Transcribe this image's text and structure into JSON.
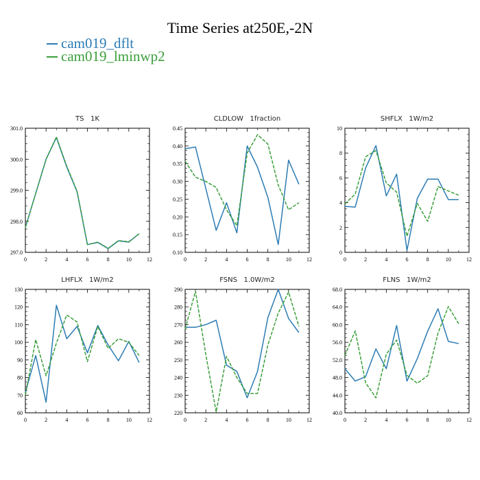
{
  "page": {
    "title": "Time Series at250E,-2N"
  },
  "colors": {
    "dflt": "#2b7bb3",
    "lminwp2": "#3a9e3a"
  },
  "legend": [
    {
      "label": "cam019_dflt",
      "color": "#2b7bb3",
      "style": "solid"
    },
    {
      "label": "cam019_lminwp2",
      "color": "#3a9e3a",
      "style": "solid"
    }
  ],
  "chart_data": [
    {
      "type": "line",
      "title": "TS   1K",
      "x": [
        0,
        1,
        2,
        3,
        4,
        5,
        6,
        7,
        8,
        9,
        10,
        11
      ],
      "xlim": [
        0,
        12
      ],
      "xticks": [
        0,
        2,
        4,
        6,
        8,
        10,
        12
      ],
      "ylim": [
        297.0,
        301.0
      ],
      "yticks": [
        297.0,
        298.0,
        299.0,
        300.0,
        301.0
      ],
      "ytick_labels": [
        "297.0",
        "298.0",
        "299.0",
        "300.0",
        "301.0"
      ],
      "series": [
        {
          "name": "cam019_dflt",
          "values": [
            297.8,
            298.9,
            300.0,
            300.7,
            299.75,
            298.95,
            297.25,
            297.32,
            297.12,
            297.37,
            297.33,
            297.6
          ]
        },
        {
          "name": "cam019_lminwp2",
          "values": [
            297.8,
            298.9,
            300.0,
            300.72,
            299.78,
            298.97,
            297.25,
            297.33,
            297.13,
            297.38,
            297.34,
            297.6
          ]
        }
      ]
    },
    {
      "type": "line",
      "title": "CLDLOW   1fraction",
      "x": [
        0,
        1,
        2,
        3,
        4,
        5,
        6,
        7,
        8,
        9,
        10,
        11
      ],
      "xlim": [
        0,
        12
      ],
      "xticks": [
        0,
        2,
        4,
        6,
        8,
        10,
        12
      ],
      "ylim": [
        0.1,
        0.45
      ],
      "yticks": [
        0.1,
        0.15,
        0.2,
        0.25,
        0.3,
        0.35,
        0.4,
        0.45
      ],
      "ytick_labels": [
        "0.10",
        "0.15",
        "0.20",
        "0.25",
        "0.30",
        "0.35",
        "0.40",
        "0.45"
      ],
      "series": [
        {
          "name": "cam019_dflt",
          "values": [
            0.392,
            0.397,
            0.28,
            0.162,
            0.24,
            0.155,
            0.4,
            0.34,
            0.255,
            0.122,
            0.36,
            0.292
          ]
        },
        {
          "name": "cam019_lminwp2",
          "values": [
            0.357,
            0.312,
            0.3,
            0.283,
            0.22,
            0.175,
            0.38,
            0.432,
            0.405,
            0.29,
            0.22,
            0.24
          ]
        }
      ]
    },
    {
      "type": "line",
      "title": "SHFLX   1W/m2",
      "x": [
        0,
        1,
        2,
        3,
        4,
        5,
        6,
        7,
        8,
        9,
        10,
        11
      ],
      "xlim": [
        0,
        12
      ],
      "xticks": [
        0,
        2,
        4,
        6,
        8,
        10,
        12
      ],
      "ylim": [
        0,
        10
      ],
      "yticks": [
        0,
        2,
        4,
        6,
        8,
        10
      ],
      "ytick_labels": [
        "0",
        "2",
        "4",
        "6",
        "8",
        "10"
      ],
      "series": [
        {
          "name": "cam019_dflt",
          "values": [
            3.7,
            3.65,
            6.8,
            8.6,
            4.55,
            6.3,
            0.15,
            4.35,
            5.9,
            5.9,
            4.25,
            4.25
          ]
        },
        {
          "name": "cam019_lminwp2",
          "values": [
            3.9,
            4.7,
            7.7,
            8.2,
            5.6,
            4.85,
            1.3,
            3.95,
            2.5,
            5.3,
            4.95,
            4.6
          ]
        }
      ]
    },
    {
      "type": "line",
      "title": "LHFLX   1W/m2",
      "x": [
        0,
        1,
        2,
        3,
        4,
        5,
        6,
        7,
        8,
        9,
        10,
        11
      ],
      "xlim": [
        0,
        12
      ],
      "xticks": [
        0,
        2,
        4,
        6,
        8,
        10,
        12
      ],
      "ylim": [
        60,
        130
      ],
      "yticks": [
        60,
        70,
        80,
        90,
        100,
        110,
        120,
        130
      ],
      "ytick_labels": [
        "60",
        "70",
        "80",
        "90",
        "100",
        "110",
        "120",
        "130"
      ],
      "series": [
        {
          "name": "cam019_dflt",
          "values": [
            71.5,
            92.5,
            66.0,
            121.0,
            102.0,
            109.0,
            94.0,
            109.5,
            98.5,
            89.5,
            100.5,
            88.5
          ]
        },
        {
          "name": "cam019_lminwp2",
          "values": [
            70.0,
            101.5,
            81.0,
            99.5,
            115.5,
            111.5,
            89.0,
            109.0,
            96.5,
            102.0,
            100.0,
            92.5
          ]
        }
      ]
    },
    {
      "type": "line",
      "title": "FSNS   1.0W/m2",
      "x": [
        0,
        1,
        2,
        3,
        4,
        5,
        6,
        7,
        8,
        9,
        10,
        11
      ],
      "xlim": [
        0,
        12
      ],
      "xticks": [
        0,
        2,
        4,
        6,
        8,
        10,
        12
      ],
      "ylim": [
        220,
        290
      ],
      "yticks": [
        220,
        230,
        240,
        250,
        260,
        270,
        280,
        290
      ],
      "ytick_labels": [
        "220",
        "230",
        "240",
        "250",
        "260",
        "270",
        "280",
        "290"
      ],
      "series": [
        {
          "name": "cam019_dflt",
          "values": [
            268.5,
            268.5,
            270.0,
            272.5,
            247.0,
            243.5,
            228.5,
            243.5,
            274.0,
            290.0,
            273.5,
            265.5
          ]
        },
        {
          "name": "cam019_lminwp2",
          "values": [
            267.5,
            289.0,
            253.0,
            220.5,
            252.0,
            240.0,
            231.0,
            231.0,
            258.5,
            276.5,
            288.5,
            269.0
          ]
        }
      ]
    },
    {
      "type": "line",
      "title": "FLNS   1W/m2",
      "x": [
        0,
        1,
        2,
        3,
        4,
        5,
        6,
        7,
        8,
        9,
        10,
        11
      ],
      "xlim": [
        0,
        12
      ],
      "xticks": [
        0,
        2,
        4,
        6,
        8,
        10,
        12
      ],
      "ylim": [
        40.0,
        68.0
      ],
      "yticks": [
        40.0,
        44.0,
        48.0,
        52.0,
        56.0,
        60.0,
        64.0,
        68.0
      ],
      "ytick_labels": [
        "40.0",
        "44.0",
        "48.0",
        "52.0",
        "56.0",
        "60.0",
        "64.0",
        "68.0"
      ],
      "series": [
        {
          "name": "cam019_dflt",
          "values": [
            50.0,
            47.2,
            48.2,
            54.5,
            50.0,
            59.8,
            47.2,
            52.3,
            58.5,
            63.6,
            56.2,
            55.7
          ]
        },
        {
          "name": "cam019_lminwp2",
          "values": [
            53.0,
            58.6,
            46.8,
            43.4,
            53.3,
            56.5,
            48.5,
            46.7,
            48.4,
            58.1,
            64.1,
            60.2
          ]
        }
      ]
    }
  ]
}
